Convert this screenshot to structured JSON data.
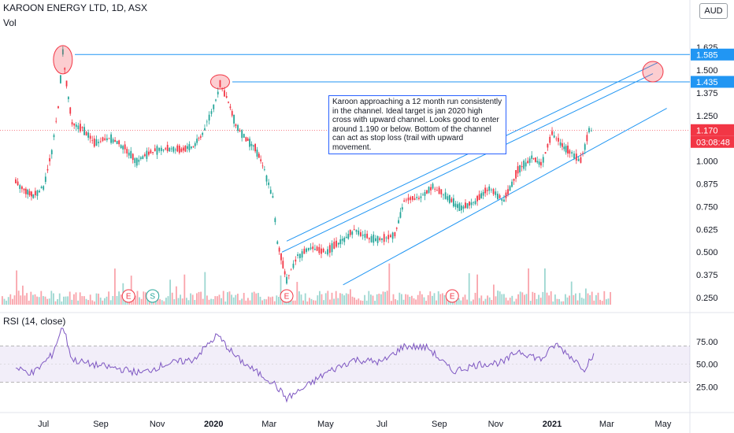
{
  "header": {
    "symbol_line": "KAROON ENERGY LTD, 1D, ASX",
    "vol_label": "Vol",
    "currency": "AUD",
    "rsi_label": "RSI (14, close)"
  },
  "annotation": {
    "text": "Karoon approaching a 12 month run consistently in the channel. Ideal target is jan 2020 high cross with upward channel. Looks good to enter around 1.190 or below. Bottom of the channel can act as stop loss (trail with upward movement."
  },
  "chart_data": {
    "type": "line",
    "title": "KAROON ENERGY LTD, 1D, ASX",
    "price_axis": {
      "ticks": [
        "1.625",
        "1.500",
        "1.375",
        "1.250",
        "1.000",
        "0.875",
        "0.750",
        "0.625",
        "0.500",
        "0.375",
        "0.250"
      ],
      "min": 0.22,
      "max": 1.69
    },
    "x_axis_labels": [
      "Jul",
      "Sep",
      "Nov",
      "2020",
      "Mar",
      "May",
      "Jul",
      "Sep",
      "Nov",
      "2021",
      "Mar",
      "May"
    ],
    "price_tags": [
      {
        "value": "1.585",
        "color": "#2196f3"
      },
      {
        "value": "1.435",
        "color": "#2196f3"
      },
      {
        "value": "1.170",
        "color": "#f23645"
      },
      {
        "value": "03:08:48",
        "color": "#f23645"
      }
    ],
    "horizontal_lines": [
      1.585,
      1.435,
      1.17
    ],
    "price_series": [
      [
        "2019-06-01",
        0.88
      ],
      [
        "2019-06-10",
        0.84
      ],
      [
        "2019-06-20",
        0.81
      ],
      [
        "2019-07-01",
        0.86
      ],
      [
        "2019-07-10",
        1.05
      ],
      [
        "2019-07-17",
        1.3
      ],
      [
        "2019-07-22",
        1.6
      ],
      [
        "2019-07-26",
        1.42
      ],
      [
        "2019-08-01",
        1.2
      ],
      [
        "2019-08-12",
        1.18
      ],
      [
        "2019-08-25",
        1.1
      ],
      [
        "2019-09-10",
        1.13
      ],
      [
        "2019-09-25",
        1.08
      ],
      [
        "2019-10-10",
        1.0
      ],
      [
        "2019-10-25",
        1.05
      ],
      [
        "2019-11-10",
        1.07
      ],
      [
        "2019-11-25",
        1.06
      ],
      [
        "2019-12-10",
        1.08
      ],
      [
        "2019-12-20",
        1.15
      ],
      [
        "2020-01-01",
        1.3
      ],
      [
        "2020-01-08",
        1.42
      ],
      [
        "2020-01-15",
        1.35
      ],
      [
        "2020-01-25",
        1.2
      ],
      [
        "2020-02-05",
        1.12
      ],
      [
        "2020-02-15",
        1.07
      ],
      [
        "2020-02-25",
        0.95
      ],
      [
        "2020-03-05",
        0.8
      ],
      [
        "2020-03-10",
        0.55
      ],
      [
        "2020-03-20",
        0.35
      ],
      [
        "2020-04-01",
        0.48
      ],
      [
        "2020-04-15",
        0.52
      ],
      [
        "2020-05-01",
        0.5
      ],
      [
        "2020-05-15",
        0.55
      ],
      [
        "2020-06-01",
        0.62
      ],
      [
        "2020-06-15",
        0.58
      ],
      [
        "2020-07-01",
        0.57
      ],
      [
        "2020-07-15",
        0.6
      ],
      [
        "2020-07-25",
        0.78
      ],
      [
        "2020-08-10",
        0.8
      ],
      [
        "2020-08-25",
        0.86
      ],
      [
        "2020-09-10",
        0.8
      ],
      [
        "2020-09-25",
        0.74
      ],
      [
        "2020-10-10",
        0.78
      ],
      [
        "2020-10-25",
        0.85
      ],
      [
        "2020-11-10",
        0.78
      ],
      [
        "2020-11-25",
        0.95
      ],
      [
        "2020-12-10",
        1.02
      ],
      [
        "2020-12-20",
        0.98
      ],
      [
        "2021-01-01",
        1.15
      ],
      [
        "2021-01-10",
        1.1
      ],
      [
        "2021-01-20",
        1.05
      ],
      [
        "2021-02-01",
        1.0
      ],
      [
        "2021-02-10",
        1.17
      ],
      [
        "2021-02-15",
        1.17
      ]
    ],
    "rsi_axis": {
      "ticks": [
        "75.00",
        "50.00",
        "25.00"
      ],
      "upper_band": 70,
      "lower_band": 30
    },
    "rsi_series": [
      [
        "2019-06-01",
        45
      ],
      [
        "2019-06-20",
        40
      ],
      [
        "2019-07-10",
        60
      ],
      [
        "2019-07-22",
        92
      ],
      [
        "2019-08-01",
        55
      ],
      [
        "2019-08-20",
        50
      ],
      [
        "2019-09-20",
        45
      ],
      [
        "2019-10-15",
        40
      ],
      [
        "2019-11-10",
        50
      ],
      [
        "2019-12-10",
        55
      ],
      [
        "2020-01-05",
        82
      ],
      [
        "2020-01-25",
        58
      ],
      [
        "2020-02-15",
        42
      ],
      [
        "2020-03-05",
        30
      ],
      [
        "2020-03-20",
        12
      ],
      [
        "2020-04-10",
        25
      ],
      [
        "2020-05-01",
        40
      ],
      [
        "2020-06-01",
        55
      ],
      [
        "2020-07-01",
        52
      ],
      [
        "2020-07-25",
        70
      ],
      [
        "2020-08-20",
        68
      ],
      [
        "2020-09-15",
        42
      ],
      [
        "2020-10-15",
        50
      ],
      [
        "2020-11-10",
        52
      ],
      [
        "2020-11-25",
        65
      ],
      [
        "2020-12-20",
        55
      ],
      [
        "2021-01-05",
        72
      ],
      [
        "2021-01-25",
        55
      ],
      [
        "2021-02-05",
        45
      ],
      [
        "2021-02-15",
        62
      ]
    ],
    "event_markers": [
      {
        "label": "E",
        "date": "2019-10-01",
        "color": "#f23645"
      },
      {
        "label": "S",
        "date": "2019-10-27",
        "color": "#26a69a"
      },
      {
        "label": "E",
        "date": "2020-03-20",
        "color": "#f23645"
      },
      {
        "label": "E",
        "date": "2020-09-15",
        "color": "#f23645"
      }
    ],
    "channel_lines": [
      {
        "from": [
          "2020-03-15",
          0.5
        ],
        "to": [
          "2021-04-20",
          1.48
        ]
      },
      {
        "from": [
          "2020-03-20",
          0.56
        ],
        "to": [
          "2021-04-25",
          1.54
        ]
      },
      {
        "from": [
          "2020-05-20",
          0.32
        ],
        "to": [
          "2021-05-05",
          1.29
        ]
      }
    ]
  }
}
